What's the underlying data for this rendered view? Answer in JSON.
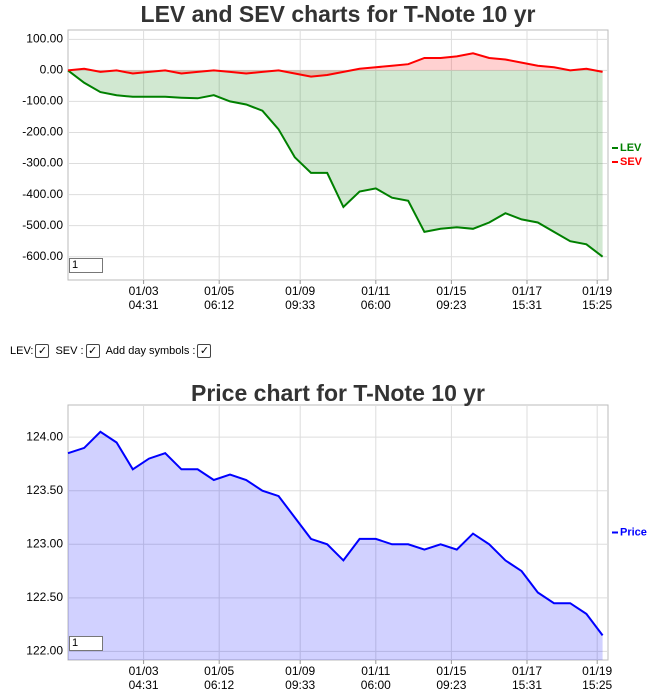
{
  "chart_data": [
    {
      "type": "line",
      "title": "LEV and SEV charts for T-Note 10 yr",
      "x": [
        0,
        3,
        6,
        9,
        12,
        15,
        18,
        21,
        24,
        27,
        30,
        33,
        36,
        39,
        42,
        45,
        48,
        51,
        54,
        57,
        60,
        63,
        66,
        69,
        72,
        75,
        78,
        81,
        84,
        87,
        90,
        93,
        96,
        99
      ],
      "series": [
        {
          "name": "LEV",
          "color": "#008000",
          "values": [
            0,
            -40,
            -70,
            -80,
            -85,
            -85,
            -85,
            -88,
            -90,
            -80,
            -100,
            -110,
            -130,
            -190,
            -280,
            -330,
            -330,
            -440,
            -390,
            -380,
            -410,
            -420,
            -520,
            -510,
            -505,
            -510,
            -490,
            -460,
            -480,
            -490,
            -520,
            -550,
            -560,
            -600
          ]
        },
        {
          "name": "SEV",
          "color": "#ff0000",
          "values": [
            0,
            5,
            -5,
            0,
            -10,
            -5,
            0,
            -10,
            -5,
            0,
            -5,
            -10,
            -5,
            0,
            -10,
            -20,
            -15,
            -5,
            5,
            10,
            15,
            20,
            40,
            40,
            45,
            55,
            40,
            35,
            25,
            15,
            10,
            0,
            5,
            -5
          ]
        }
      ],
      "area": true,
      "grid": true,
      "legend": "right",
      "xlim": [
        0,
        100
      ],
      "xticks": [
        {
          "value": 14,
          "label": "01/03 04:31"
        },
        {
          "value": 28,
          "label": "01/05 06:12"
        },
        {
          "value": 43,
          "label": "01/09 09:33"
        },
        {
          "value": 57,
          "label": "01/11 06:00"
        },
        {
          "value": 71,
          "label": "01/15 09:23"
        },
        {
          "value": 85,
          "label": "01/17 15:31"
        },
        {
          "value": 98,
          "label": "01/19 15:25"
        }
      ],
      "ylim": [
        -675,
        130
      ],
      "yticks": [
        {
          "value": 100,
          "label": "100.00"
        },
        {
          "value": 0,
          "label": "0.00"
        },
        {
          "value": -100,
          "label": "-100.00"
        },
        {
          "value": -200,
          "label": "-200.00"
        },
        {
          "value": -300,
          "label": "-300.00"
        },
        {
          "value": -400,
          "label": "-400.00"
        },
        {
          "value": -500,
          "label": "-500.00"
        },
        {
          "value": -600,
          "label": "-600.00"
        }
      ]
    },
    {
      "type": "line",
      "title": "Price chart for T-Note 10 yr",
      "x": [
        0,
        3,
        6,
        9,
        12,
        15,
        18,
        21,
        24,
        27,
        30,
        33,
        36,
        39,
        42,
        45,
        48,
        51,
        54,
        57,
        60,
        63,
        66,
        69,
        72,
        75,
        78,
        81,
        84,
        87,
        90,
        93,
        96,
        99
      ],
      "series": [
        {
          "name": "Price",
          "color": "#0000ff",
          "values": [
            123.85,
            123.9,
            124.05,
            123.95,
            123.7,
            123.8,
            123.85,
            123.7,
            123.7,
            123.6,
            123.65,
            123.6,
            123.5,
            123.45,
            123.25,
            123.05,
            123.0,
            122.85,
            123.05,
            123.05,
            123.0,
            123.0,
            122.95,
            123.0,
            122.95,
            123.1,
            123.0,
            122.85,
            122.75,
            122.55,
            122.45,
            122.45,
            122.35,
            122.15
          ]
        }
      ],
      "area": true,
      "grid": true,
      "legend": "right",
      "xlim": [
        0,
        100
      ],
      "xticks": [
        {
          "value": 14,
          "label": "01/03 04:31"
        },
        {
          "value": 28,
          "label": "01/05 06:12"
        },
        {
          "value": 43,
          "label": "01/09 09:33"
        },
        {
          "value": 57,
          "label": "01/11 06:00"
        },
        {
          "value": 71,
          "label": "01/15 09:23"
        },
        {
          "value": 85,
          "label": "01/17 15:31"
        },
        {
          "value": 98,
          "label": "01/19 15:25"
        }
      ],
      "ylim": [
        121.92,
        124.3
      ],
      "yticks": [
        {
          "value": 124,
          "label": "124.00"
        },
        {
          "value": 123.5,
          "label": "123.50"
        },
        {
          "value": 123,
          "label": "123.00"
        },
        {
          "value": 122.5,
          "label": "122.50"
        },
        {
          "value": 122,
          "label": "122.00"
        }
      ]
    }
  ],
  "controls": {
    "zoom_1": "1",
    "lev": "LEV:",
    "sev": "SEV :",
    "day_symbols": "Add day symbols :",
    "zoom_2": "1"
  }
}
